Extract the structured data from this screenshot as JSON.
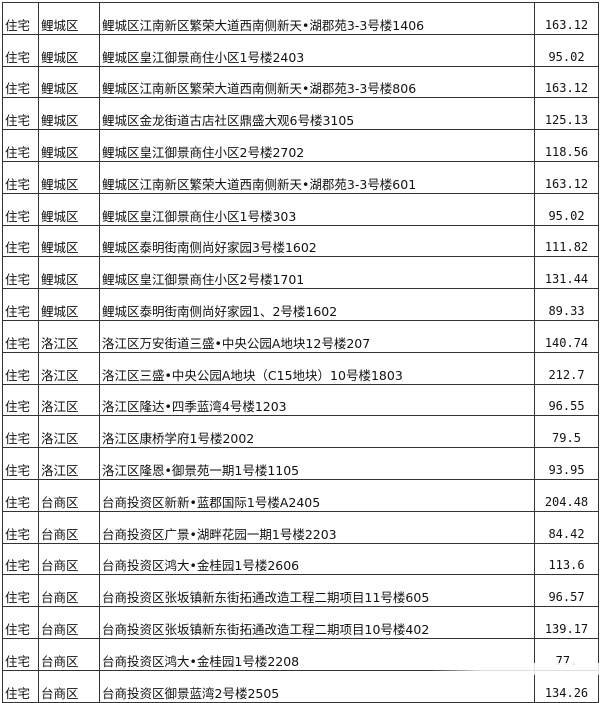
{
  "table": {
    "rows": [
      [
        "住宅",
        "鲤城区",
        "鲤城区江南新区繁荣大道西南侧新天•湖郡苑3-3号楼1406",
        "163.12"
      ],
      [
        "住宅",
        "鲤城区",
        "鲤城区皇江御景商住小区1号楼2403",
        "95.02"
      ],
      [
        "住宅",
        "鲤城区",
        "鲤城区江南新区繁荣大道西南侧新天•湖郡苑3-3号楼806",
        "163.12"
      ],
      [
        "住宅",
        "鲤城区",
        "鲤城区金龙街道古店社区鼎盛大观6号楼3105",
        "125.13"
      ],
      [
        "住宅",
        "鲤城区",
        "鲤城区皇江御景商住小区2号楼2702",
        "118.56"
      ],
      [
        "住宅",
        "鲤城区",
        "鲤城区江南新区繁荣大道西南侧新天•湖郡苑3-3号楼601",
        "163.12"
      ],
      [
        "住宅",
        "鲤城区",
        "鲤城区皇江御景商住小区1号楼303",
        "95.02"
      ],
      [
        "住宅",
        "鲤城区",
        "鲤城区泰明街南侧尚好家园3号楼1602",
        "111.82"
      ],
      [
        "住宅",
        "鲤城区",
        "鲤城区皇江御景商住小区2号楼1701",
        "131.44"
      ],
      [
        "住宅",
        "鲤城区",
        "鲤城区泰明街南侧尚好家园1、2号楼1602",
        "89.33"
      ],
      [
        "住宅",
        "洛江区",
        "洛江区万安街道三盛•中央公园A地块12号楼207",
        "140.74"
      ],
      [
        "住宅",
        "洛江区",
        "洛江区三盛•中央公园A地块（C15地块）10号楼1803",
        "212.7"
      ],
      [
        "住宅",
        "洛江区",
        "洛江区隆达•四季蓝湾4号楼1203",
        "96.55"
      ],
      [
        "住宅",
        "洛江区",
        "洛江区康桥学府1号楼2002",
        "79.5"
      ],
      [
        "住宅",
        "洛江区",
        "洛江区隆恩•御景苑一期1号楼1105",
        "93.95"
      ],
      [
        "住宅",
        "台商区",
        "台商投资区新新•蓝郡国际1号楼A2405",
        "204.48"
      ],
      [
        "住宅",
        "台商区",
        "台商投资区广景•湖畔花园一期1号楼2203",
        "84.42"
      ],
      [
        "住宅",
        "台商区",
        "台商投资区鸿大•金桂园1号楼2606",
        "113.6"
      ],
      [
        "住宅",
        "台商区",
        "台商投资区张坂镇新东街拓通改造工程二期项目11号楼605",
        "96.57"
      ],
      [
        "住宅",
        "台商区",
        "台商投资区张坂镇新东街拓通改造工程二期项目10号楼402",
        "139.17"
      ],
      [
        "住宅",
        "台商区",
        "台商投资区鸿大•金桂园1号楼2208",
        "77."
      ],
      [
        "住宅",
        "台商区",
        "台商投资区御景蓝湾2号楼2505",
        "134.26"
      ]
    ]
  }
}
